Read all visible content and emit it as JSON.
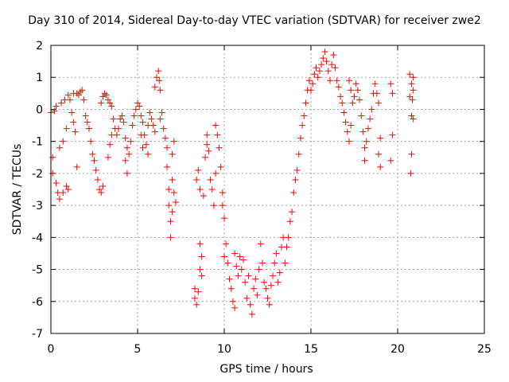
{
  "chart_data": {
    "type": "scatter",
    "title": "Day 310 of 2014, Sidereal Day-to-day VTEC variation (SDTVAR) for receiver zwe2",
    "xlabel": "GPS time / hours",
    "ylabel": "SDTVAR / TECUs",
    "xlim": [
      0,
      25
    ],
    "ylim": [
      -7,
      2
    ],
    "x_ticks": [
      0,
      5,
      10,
      15,
      20,
      25
    ],
    "y_ticks": [
      2,
      1,
      0,
      -1,
      -2,
      -3,
      -4,
      -5,
      -6,
      -7
    ],
    "grid": true,
    "marker": "+",
    "color": "#ff0000",
    "series": [
      {
        "name": "SDTVAR",
        "points": [
          [
            0.0,
            -0.1
          ],
          [
            0.1,
            -1.5
          ],
          [
            0.1,
            -2.0
          ],
          [
            0.2,
            -0.05
          ],
          [
            0.3,
            -2.3
          ],
          [
            0.3,
            0.1
          ],
          [
            0.4,
            -2.6
          ],
          [
            0.5,
            -2.8
          ],
          [
            0.5,
            -1.2
          ],
          [
            0.6,
            0.2
          ],
          [
            0.7,
            -2.6
          ],
          [
            0.7,
            -1.0
          ],
          [
            0.8,
            0.3
          ],
          [
            0.9,
            -2.4
          ],
          [
            0.9,
            -0.6
          ],
          [
            1.0,
            0.45
          ],
          [
            1.0,
            -2.5
          ],
          [
            1.1,
            0.3
          ],
          [
            1.2,
            -0.1
          ],
          [
            1.3,
            -0.4
          ],
          [
            1.3,
            0.5
          ],
          [
            1.4,
            -0.7
          ],
          [
            1.5,
            -1.8
          ],
          [
            1.5,
            0.5
          ],
          [
            1.6,
            0.45
          ],
          [
            1.7,
            0.55
          ],
          [
            1.8,
            0.6
          ],
          [
            1.9,
            0.3
          ],
          [
            2.0,
            -0.2
          ],
          [
            2.1,
            -0.4
          ],
          [
            2.2,
            -0.6
          ],
          [
            2.3,
            -1.0
          ],
          [
            2.4,
            -1.4
          ],
          [
            2.5,
            -1.6
          ],
          [
            2.6,
            -1.9
          ],
          [
            2.7,
            -2.2
          ],
          [
            2.8,
            -2.5
          ],
          [
            2.9,
            -2.6
          ],
          [
            3.0,
            -2.4
          ],
          [
            2.9,
            0.2
          ],
          [
            3.0,
            0.4
          ],
          [
            3.1,
            0.5
          ],
          [
            3.2,
            0.45
          ],
          [
            3.3,
            0.3
          ],
          [
            3.4,
            0.2
          ],
          [
            3.5,
            0.1
          ],
          [
            3.3,
            -1.5
          ],
          [
            3.4,
            -1.1
          ],
          [
            3.5,
            -0.8
          ],
          [
            3.6,
            -0.3
          ],
          [
            3.7,
            -0.6
          ],
          [
            3.8,
            -0.8
          ],
          [
            3.9,
            -0.6
          ],
          [
            4.0,
            -0.3
          ],
          [
            4.1,
            -0.2
          ],
          [
            4.2,
            -0.4
          ],
          [
            4.3,
            -0.9
          ],
          [
            4.4,
            -1.2
          ],
          [
            4.3,
            -1.6
          ],
          [
            4.4,
            -2.0
          ],
          [
            4.5,
            -1.4
          ],
          [
            4.6,
            -1.0
          ],
          [
            4.7,
            -0.5
          ],
          [
            4.8,
            -0.2
          ],
          [
            4.9,
            0.0
          ],
          [
            5.0,
            0.2
          ],
          [
            5.1,
            0.1
          ],
          [
            5.2,
            -0.2
          ],
          [
            5.3,
            -0.4
          ],
          [
            5.4,
            -0.8
          ],
          [
            5.5,
            -1.1
          ],
          [
            5.6,
            -1.4
          ],
          [
            5.2,
            -0.8
          ],
          [
            5.3,
            -1.2
          ],
          [
            5.6,
            -0.5
          ],
          [
            5.7,
            -0.1
          ],
          [
            5.8,
            -0.3
          ],
          [
            5.9,
            -0.5
          ],
          [
            6.0,
            -0.7
          ],
          [
            6.0,
            0.7
          ],
          [
            6.1,
            1.0
          ],
          [
            6.2,
            1.2
          ],
          [
            6.25,
            0.9
          ],
          [
            6.3,
            0.6
          ],
          [
            6.3,
            -0.3
          ],
          [
            6.4,
            -0.1
          ],
          [
            6.5,
            -0.6
          ],
          [
            6.6,
            -0.9
          ],
          [
            6.7,
            -1.2
          ],
          [
            6.7,
            -1.8
          ],
          [
            6.8,
            -2.5
          ],
          [
            6.8,
            -3.0
          ],
          [
            6.9,
            -3.5
          ],
          [
            6.9,
            -4.0
          ],
          [
            7.0,
            -3.2
          ],
          [
            7.0,
            -2.2
          ],
          [
            7.1,
            -2.6
          ],
          [
            7.2,
            -2.9
          ],
          [
            7.0,
            -1.4
          ],
          [
            7.1,
            -1.0
          ],
          [
            8.3,
            -5.6
          ],
          [
            8.3,
            -5.9
          ],
          [
            8.4,
            -6.1
          ],
          [
            8.5,
            -5.7
          ],
          [
            8.4,
            -2.2
          ],
          [
            8.5,
            -1.9
          ],
          [
            8.6,
            -2.5
          ],
          [
            8.6,
            -4.2
          ],
          [
            8.6,
            -5.0
          ],
          [
            8.7,
            -4.6
          ],
          [
            8.7,
            -5.2
          ],
          [
            8.8,
            -2.7
          ],
          [
            8.9,
            -1.5
          ],
          [
            9.0,
            -0.8
          ],
          [
            9.0,
            -1.1
          ],
          [
            9.1,
            -1.3
          ],
          [
            9.2,
            -2.2
          ],
          [
            9.3,
            -2.5
          ],
          [
            9.4,
            -3.0
          ],
          [
            9.5,
            -2.0
          ],
          [
            9.5,
            -0.5
          ],
          [
            9.6,
            -0.8
          ],
          [
            9.7,
            -1.2
          ],
          [
            9.8,
            -1.8
          ],
          [
            9.9,
            -3.0
          ],
          [
            9.9,
            -2.6
          ],
          [
            10.0,
            -3.4
          ],
          [
            10.0,
            -4.6
          ],
          [
            10.1,
            -4.2
          ],
          [
            10.2,
            -4.8
          ],
          [
            10.3,
            -5.3
          ],
          [
            10.4,
            -5.6
          ],
          [
            10.5,
            -6.0
          ],
          [
            10.6,
            -6.2
          ],
          [
            10.6,
            -4.5
          ],
          [
            10.7,
            -4.9
          ],
          [
            10.8,
            -5.2
          ],
          [
            10.9,
            -4.6
          ],
          [
            11.0,
            -5.0
          ],
          [
            11.1,
            -4.7
          ],
          [
            11.2,
            -5.4
          ],
          [
            11.3,
            -5.9
          ],
          [
            11.4,
            -5.2
          ],
          [
            11.5,
            -6.1
          ],
          [
            11.6,
            -6.4
          ],
          [
            11.7,
            -5.6
          ],
          [
            11.8,
            -5.3
          ],
          [
            11.9,
            -5.8
          ],
          [
            12.0,
            -5.0
          ],
          [
            12.1,
            -4.2
          ],
          [
            12.2,
            -4.8
          ],
          [
            12.3,
            -5.4
          ],
          [
            12.4,
            -5.6
          ],
          [
            12.5,
            -5.9
          ],
          [
            12.6,
            -6.1
          ],
          [
            12.7,
            -5.5
          ],
          [
            12.8,
            -5.2
          ],
          [
            12.9,
            -4.8
          ],
          [
            13.0,
            -4.5
          ],
          [
            13.1,
            -5.4
          ],
          [
            13.2,
            -5.1
          ],
          [
            13.3,
            -4.3
          ],
          [
            13.4,
            -4.0
          ],
          [
            13.5,
            -4.8
          ],
          [
            13.6,
            -4.3
          ],
          [
            13.7,
            -4.0
          ],
          [
            13.8,
            -3.5
          ],
          [
            13.9,
            -3.2
          ],
          [
            14.0,
            -2.6
          ],
          [
            14.1,
            -2.2
          ],
          [
            14.2,
            -1.9
          ],
          [
            14.3,
            -1.4
          ],
          [
            14.4,
            -0.9
          ],
          [
            14.5,
            -0.5
          ],
          [
            14.6,
            -0.2
          ],
          [
            14.7,
            0.2
          ],
          [
            14.8,
            0.6
          ],
          [
            14.9,
            0.9
          ],
          [
            15.0,
            0.6
          ],
          [
            15.1,
            0.8
          ],
          [
            15.2,
            1.1
          ],
          [
            15.3,
            1.3
          ],
          [
            15.4,
            1.0
          ],
          [
            15.5,
            1.2
          ],
          [
            15.6,
            1.4
          ],
          [
            15.7,
            1.6
          ],
          [
            15.8,
            1.8
          ],
          [
            15.9,
            1.5
          ],
          [
            16.0,
            1.2
          ],
          [
            16.1,
            0.9
          ],
          [
            16.2,
            1.4
          ],
          [
            16.3,
            1.7
          ],
          [
            16.4,
            1.3
          ],
          [
            16.5,
            0.9
          ],
          [
            16.6,
            0.7
          ],
          [
            16.7,
            0.4
          ],
          [
            16.8,
            0.2
          ],
          [
            16.9,
            -0.1
          ],
          [
            17.0,
            -0.4
          ],
          [
            17.1,
            -0.7
          ],
          [
            17.2,
            -1.0
          ],
          [
            17.3,
            -0.5
          ],
          [
            17.2,
            0.9
          ],
          [
            17.3,
            0.6
          ],
          [
            17.4,
            0.2
          ],
          [
            17.5,
            0.4
          ],
          [
            17.6,
            0.8
          ],
          [
            17.7,
            0.6
          ],
          [
            17.8,
            0.3
          ],
          [
            17.9,
            -0.2
          ],
          [
            18.0,
            -0.7
          ],
          [
            18.1,
            -1.2
          ],
          [
            18.1,
            -1.6
          ],
          [
            18.2,
            -1.0
          ],
          [
            18.3,
            -0.6
          ],
          [
            18.4,
            -0.3
          ],
          [
            18.5,
            0.0
          ],
          [
            18.6,
            0.5
          ],
          [
            18.7,
            0.8
          ],
          [
            18.8,
            0.5
          ],
          [
            18.9,
            0.2
          ],
          [
            18.9,
            -1.4
          ],
          [
            19.0,
            -1.8
          ],
          [
            19.0,
            -0.9
          ],
          [
            19.6,
            0.8
          ],
          [
            19.7,
            0.5
          ],
          [
            19.7,
            -0.8
          ],
          [
            19.6,
            -1.6
          ],
          [
            20.7,
            1.1
          ],
          [
            20.8,
            0.8
          ],
          [
            20.9,
            0.6
          ],
          [
            20.85,
            0.3
          ],
          [
            20.8,
            -0.2
          ],
          [
            20.9,
            -0.3
          ],
          [
            20.8,
            -1.4
          ],
          [
            20.75,
            -2.0
          ],
          [
            20.9,
            1.0
          ],
          [
            20.7,
            0.4
          ]
        ]
      }
    ]
  }
}
